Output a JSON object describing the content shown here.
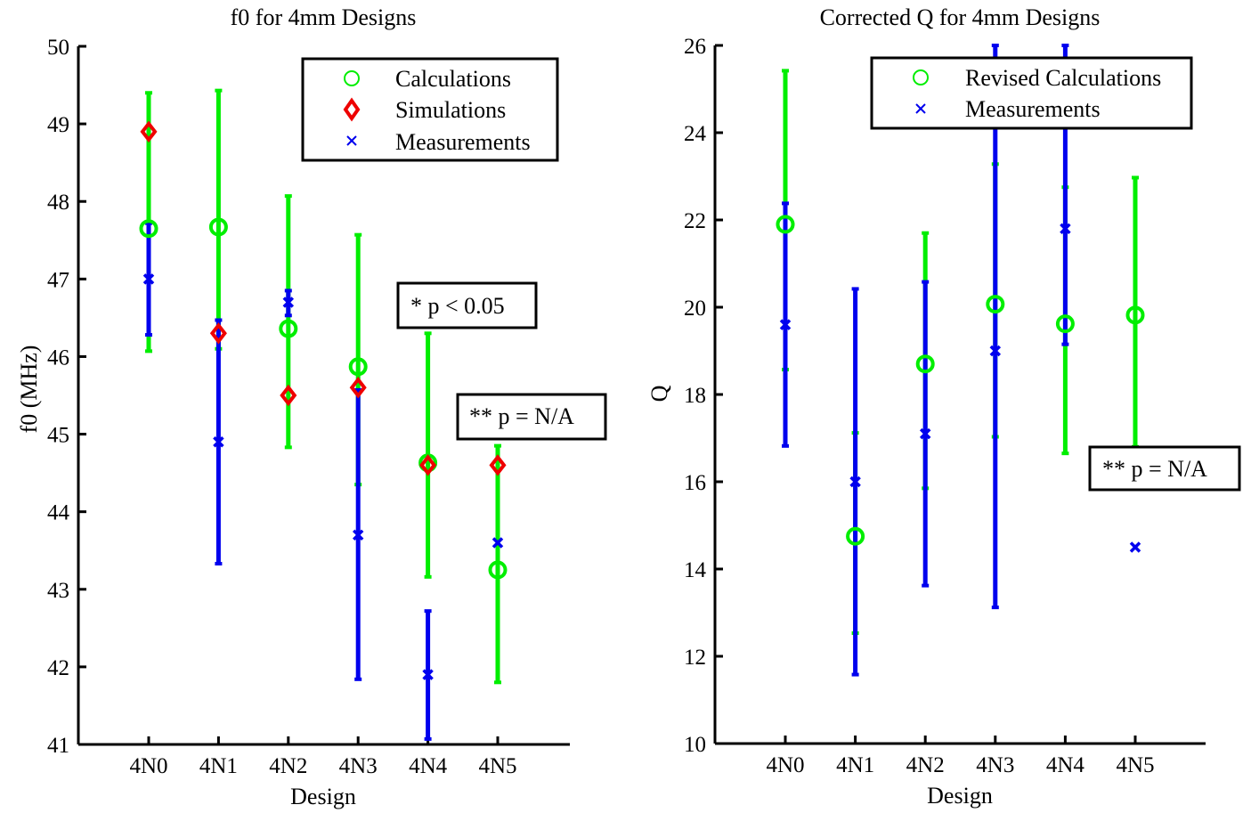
{
  "colors": {
    "calculations": "#00ee00",
    "simulations": "#ee0000",
    "measurements": "#0000ee",
    "axis": "#000000"
  },
  "chart_data": [
    {
      "type": "scatter",
      "title": "f0 for 4mm Designs",
      "xlabel": "Design",
      "ylabel": "f0 (MHz)",
      "categories": [
        "4N0",
        "4N1",
        "4N2",
        "4N3",
        "4N4",
        "4N5"
      ],
      "ylim": [
        41,
        50
      ],
      "yticks": [
        "41",
        "42",
        "43",
        "44",
        "45",
        "46",
        "47",
        "48",
        "49",
        "50"
      ],
      "legend": {
        "placement": "top-right",
        "entries": [
          "Calculations",
          "Simulations",
          "Measurements"
        ]
      },
      "series": [
        {
          "name": "Calculations",
          "marker": "circle",
          "color": "#00ee00",
          "values": [
            47.65,
            47.67,
            46.36,
            45.87,
            44.63,
            43.25
          ],
          "err_low": [
            46.07,
            46.1,
            44.83,
            44.35,
            43.16,
            41.8
          ],
          "err_high": [
            49.4,
            49.43,
            48.07,
            47.57,
            46.3,
            44.85
          ]
        },
        {
          "name": "Simulations",
          "marker": "diamond",
          "color": "#ee0000",
          "values": [
            48.9,
            46.3,
            45.5,
            45.6,
            44.6,
            44.6
          ]
        },
        {
          "name": "Measurements",
          "marker": "x",
          "color": "#0000ee",
          "values": [
            47.0,
            44.9,
            46.7,
            43.7,
            41.9,
            43.6
          ],
          "err_low": [
            46.28,
            43.33,
            46.53,
            41.84,
            41.07,
            null
          ],
          "err_high": [
            47.72,
            46.47,
            46.85,
            45.57,
            42.72,
            null
          ]
        }
      ],
      "annotations": [
        "* p < 0.05",
        "** p = N/A"
      ]
    },
    {
      "type": "scatter",
      "title": "Corrected Q for 4mm Designs",
      "xlabel": "Design",
      "ylabel": "Q",
      "categories": [
        "4N0",
        "4N1",
        "4N2",
        "4N3",
        "4N4",
        "4N5"
      ],
      "ylim": [
        10,
        26
      ],
      "yticks": [
        "10",
        "12",
        "14",
        "16",
        "18",
        "20",
        "22",
        "24",
        "26"
      ],
      "legend": {
        "placement": "top-right",
        "entries": [
          "Revised Calculations",
          "Measurements"
        ]
      },
      "series": [
        {
          "name": "Revised Calculations",
          "marker": "circle",
          "color": "#00ee00",
          "values": [
            21.9,
            14.75,
            18.7,
            20.07,
            19.62,
            19.82
          ],
          "err_low": [
            18.57,
            12.53,
            15.85,
            17.03,
            16.65,
            16.8
          ],
          "err_high": [
            25.42,
            17.12,
            21.7,
            23.28,
            22.75,
            22.97
          ]
        },
        {
          "name": "Measurements",
          "marker": "x",
          "color": "#0000ee",
          "values": [
            19.6,
            16.0,
            17.1,
            19.0,
            21.8,
            14.5
          ],
          "err_low": [
            16.82,
            11.58,
            13.62,
            13.12,
            19.15,
            null
          ],
          "err_high": [
            22.38,
            20.42,
            20.58,
            26,
            26,
            null
          ]
        }
      ],
      "annotations": [
        "** p = N/A"
      ]
    }
  ]
}
